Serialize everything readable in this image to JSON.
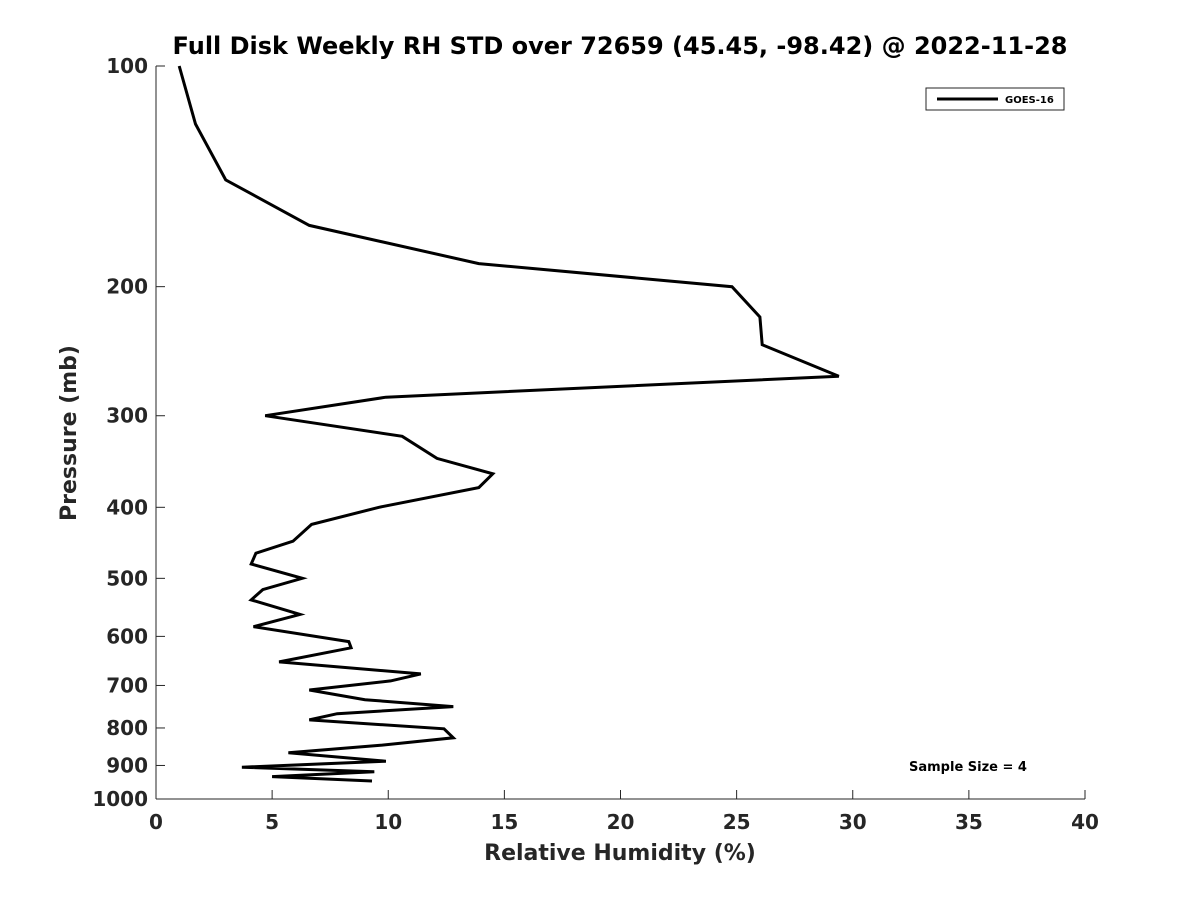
{
  "chart_data": {
    "type": "line",
    "title": "Full Disk Weekly RH STD over 72659 (45.45, -98.42) @ 2022-11-28",
    "xlabel": "Relative Humidity (%)",
    "ylabel": "Pressure (mb)",
    "xlim": [
      0,
      40
    ],
    "ylim": [
      100,
      1000
    ],
    "yscale": "log",
    "yreversed": true,
    "xticks": [
      0,
      5,
      10,
      15,
      20,
      25,
      30,
      35,
      40
    ],
    "xtick_labels": [
      "0",
      "5",
      "10",
      "15",
      "20",
      "25",
      "30",
      "35",
      "40"
    ],
    "yticks": [
      100,
      200,
      300,
      400,
      500,
      600,
      700,
      800,
      900,
      1000
    ],
    "ytick_labels": [
      "100",
      "200",
      "300",
      "400",
      "500",
      "600",
      "700",
      "800",
      "900",
      "1000"
    ],
    "grid": false,
    "legend_position": "top-right",
    "series": [
      {
        "name": "GOES-16",
        "color": "#000000",
        "x": [
          1.0,
          1.7,
          3.0,
          6.6,
          13.9,
          24.8,
          26.0,
          26.1,
          29.4,
          9.9,
          4.7,
          10.6,
          12.1,
          14.5,
          13.9,
          9.6,
          6.7,
          5.9,
          4.3,
          4.1,
          6.3,
          4.6,
          4.1,
          6.2,
          4.2,
          8.3,
          8.4,
          5.3,
          11.4,
          10.1,
          6.6,
          9.0,
          12.8,
          7.8,
          6.6,
          12.4,
          12.8,
          9.6,
          5.7,
          9.9,
          3.7,
          9.4,
          5.0,
          9.3
        ],
        "y": [
          100,
          120,
          143,
          165,
          186,
          200,
          220,
          240,
          265,
          283,
          300,
          320,
          343,
          360,
          376,
          400,
          422,
          445,
          462,
          478,
          500,
          518,
          535,
          560,
          582,
          610,
          622,
          650,
          675,
          690,
          710,
          732,
          748,
          765,
          780,
          802,
          825,
          845,
          865,
          888,
          905,
          918,
          932,
          945
        ]
      }
    ],
    "annotations": [
      {
        "text": "Sample Size = 4",
        "position": "bottom-right"
      }
    ]
  }
}
